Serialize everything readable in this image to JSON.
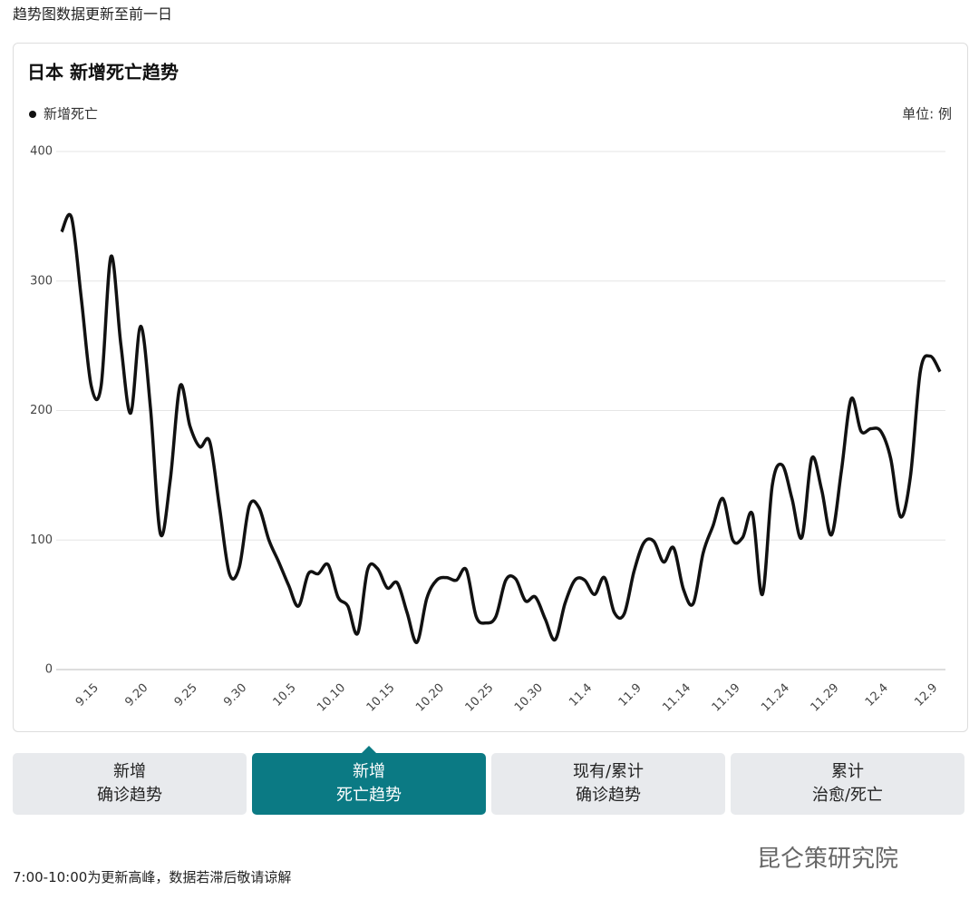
{
  "header_note": "趋势图数据更新至前一日",
  "chart_data": {
    "type": "line",
    "title": "日本 新增死亡趋势",
    "unit_label": "单位: 例",
    "categories": [
      null,
      null,
      null,
      "9.15",
      null,
      null,
      null,
      null,
      "9.20",
      null,
      null,
      null,
      null,
      "9.25",
      null,
      null,
      null,
      null,
      "9.30",
      null,
      null,
      null,
      null,
      "10.5",
      null,
      null,
      null,
      null,
      "10.10",
      null,
      null,
      null,
      null,
      "10.15",
      null,
      null,
      null,
      null,
      "10.20",
      null,
      null,
      null,
      null,
      "10.25",
      null,
      null,
      null,
      null,
      "10.30",
      null,
      null,
      null,
      null,
      "11.4",
      null,
      null,
      null,
      null,
      "11.9",
      null,
      null,
      null,
      null,
      "11.14",
      null,
      null,
      null,
      null,
      "11.19",
      null,
      null,
      null,
      null,
      "11.24",
      null,
      null,
      null,
      null,
      "11.29",
      null,
      null,
      null,
      null,
      "12.4",
      null,
      null,
      null,
      null,
      "12.9",
      null
    ],
    "series": [
      {
        "name": "新增死亡",
        "color": "#111111",
        "values": [
          338,
          349,
          286,
          219,
          219,
          319,
          251,
          198,
          265,
          202,
          105,
          146,
          219,
          188,
          172,
          176,
          125,
          74,
          79,
          126,
          125,
          100,
          83,
          65,
          49,
          74,
          74,
          81,
          56,
          49,
          28,
          77,
          78,
          63,
          67,
          44,
          21,
          55,
          69,
          71,
          69,
          77,
          41,
          36,
          41,
          69,
          70,
          53,
          56,
          39,
          23,
          51,
          69,
          69,
          58,
          71,
          44,
          43,
          76,
          98,
          99,
          83,
          94,
          62,
          51,
          90,
          111,
          132,
          100,
          102,
          120,
          58,
          142,
          158,
          132,
          102,
          163,
          139,
          104,
          153,
          209,
          184,
          186,
          184,
          163,
          118,
          149,
          230,
          242,
          230
        ]
      }
    ],
    "ylim": [
      0,
      400
    ],
    "yticks": [
      0,
      100,
      200,
      300,
      400
    ],
    "grid": true
  },
  "tabs": [
    {
      "lines": [
        "新增",
        "确诊趋势"
      ],
      "active": false
    },
    {
      "lines": [
        "新增",
        "死亡趋势"
      ],
      "active": true
    },
    {
      "lines": [
        "现有/累计",
        "确诊趋势"
      ],
      "active": false
    },
    {
      "lines": [
        "累计",
        "治愈/死亡"
      ],
      "active": false
    }
  ],
  "footer_note": "7:00-10:00为更新高峰，数据若滞后敬请谅解",
  "watermark": "昆仑策研究院"
}
